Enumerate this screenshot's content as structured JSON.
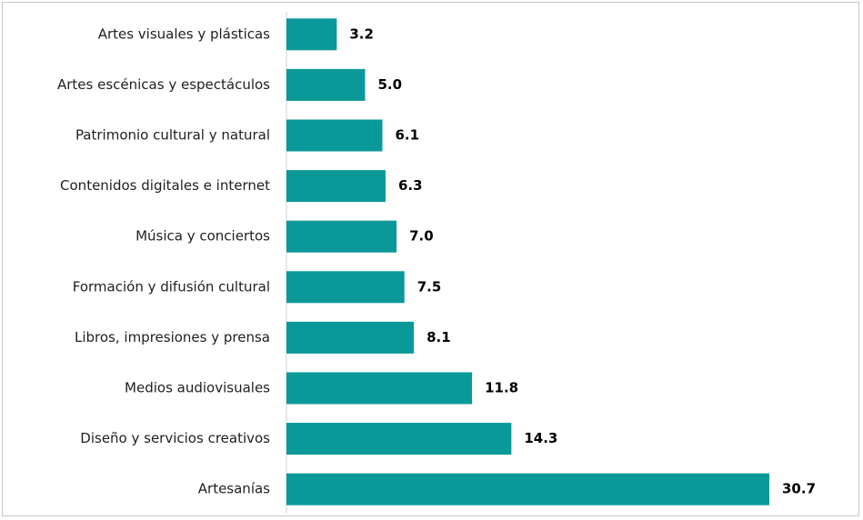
{
  "chart_data": {
    "type": "bar",
    "orientation": "horizontal",
    "categories": [
      "Artes visuales y plásticas",
      "Artes escénicas y espectáculos",
      "Patrimonio cultural y natural",
      "Contenidos digitales e internet",
      "Música y conciertos",
      "Formación y difusión cultural",
      "Libros, impresiones y prensa",
      "Medios audiovisuales",
      "Diseño y servicios creativos",
      "Artesanías"
    ],
    "values": [
      3.2,
      5.0,
      6.1,
      6.3,
      7.0,
      7.5,
      8.1,
      11.8,
      14.3,
      30.7
    ],
    "value_labels": [
      "3.2",
      "5.0",
      "6.1",
      "6.3",
      "7.0",
      "7.5",
      "8.1",
      "11.8",
      "14.3",
      "30.7"
    ],
    "title": "",
    "xlabel": "",
    "ylabel": "",
    "xlim": [
      0,
      30.7
    ],
    "grid": false,
    "legend": "none",
    "bar_color": "#0b9898",
    "axis_color": "#d0d0d0"
  }
}
